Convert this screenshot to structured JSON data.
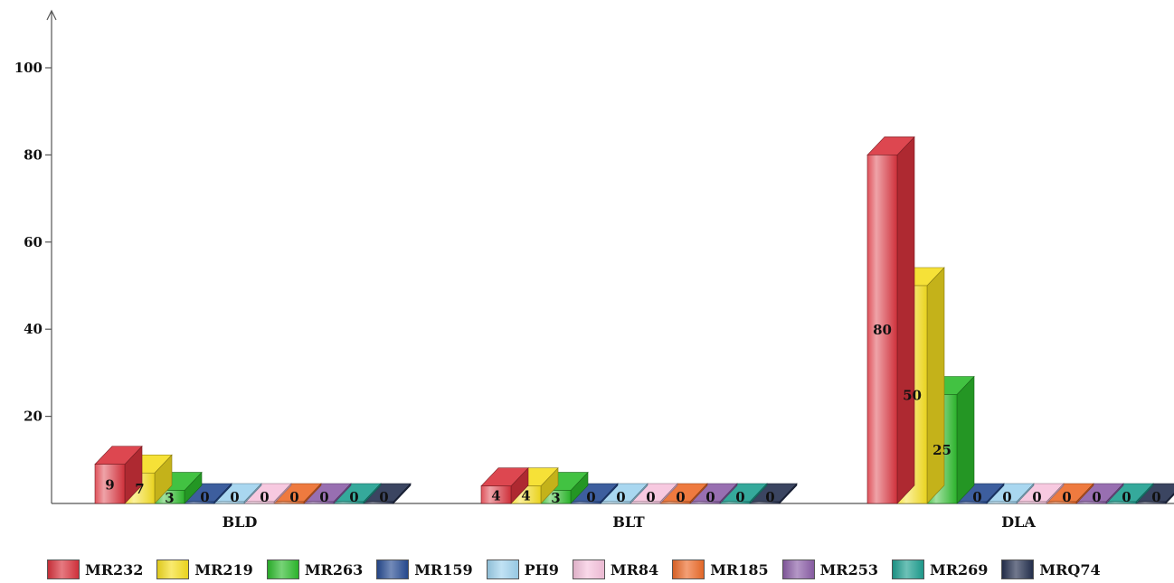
{
  "chart_data": {
    "type": "bar",
    "title": "",
    "xlabel": "",
    "ylabel": "",
    "ylim": [
      0,
      110
    ],
    "yticks": [
      20,
      40,
      60,
      80,
      100
    ],
    "grid": false,
    "legend_position": "bottom",
    "categories": [
      "BLD",
      "BLT",
      "DLA"
    ],
    "series": [
      {
        "name": "MR232",
        "color": "#d9333d",
        "values": [
          9,
          4,
          80
        ]
      },
      {
        "name": "MR219",
        "color": "#f5de21",
        "values": [
          7,
          4,
          50
        ]
      },
      {
        "name": "MR263",
        "color": "#2dbb2d",
        "values": [
          3,
          3,
          25
        ]
      },
      {
        "name": "MR159",
        "color": "#274c93",
        "values": [
          0,
          0,
          0
        ]
      },
      {
        "name": "PH9",
        "color": "#9fd3ee",
        "values": [
          0,
          0,
          0
        ]
      },
      {
        "name": "MR84",
        "color": "#f6c3dd",
        "values": [
          0,
          0,
          0
        ]
      },
      {
        "name": "MR185",
        "color": "#ec6b2a",
        "values": [
          0,
          0,
          0
        ]
      },
      {
        "name": "MR253",
        "color": "#8c5fa8",
        "values": [
          0,
          0,
          0
        ]
      },
      {
        "name": "MR269",
        "color": "#1f9f90",
        "values": [
          0,
          0,
          0
        ]
      },
      {
        "name": "MRQ74",
        "color": "#25304f",
        "values": [
          0,
          0,
          0
        ]
      }
    ]
  }
}
